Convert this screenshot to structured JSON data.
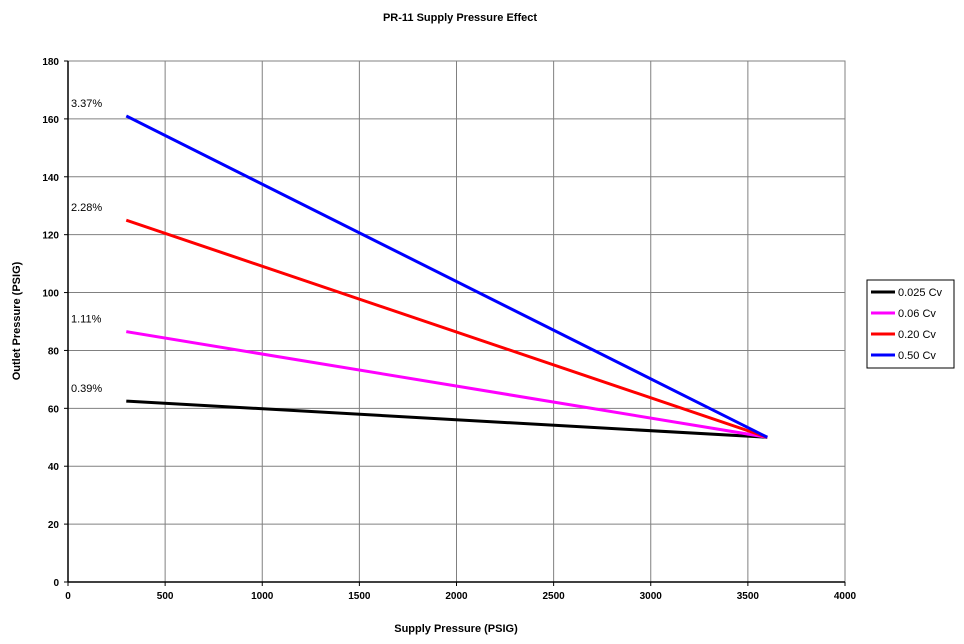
{
  "chart_data": {
    "type": "line",
    "title": "PR-11 Supply Pressure Effect",
    "xlabel": "Supply Pressure (PSIG)",
    "ylabel": "Outlet Pressure (PSIG)",
    "xlim": [
      0,
      4000
    ],
    "ylim": [
      0,
      180
    ],
    "xticks": [
      0,
      500,
      1000,
      1500,
      2000,
      2500,
      3000,
      3500,
      4000
    ],
    "yticks": [
      0,
      20,
      40,
      60,
      80,
      100,
      120,
      140,
      160,
      180
    ],
    "grid": true,
    "legend_position": "right",
    "series": [
      {
        "name": "0.025 Cv",
        "color": "#000000",
        "x": [
          300,
          3600
        ],
        "y": [
          62.5,
          50
        ],
        "annotation": "0.39%"
      },
      {
        "name": "0.06 Cv",
        "color": "#ff00ff",
        "x": [
          300,
          3600
        ],
        "y": [
          86.5,
          50
        ],
        "annotation": "1.11%"
      },
      {
        "name": "0.20 Cv",
        "color": "#ff0000",
        "x": [
          300,
          3600
        ],
        "y": [
          125,
          50
        ],
        "annotation": "2.28%"
      },
      {
        "name": "0.50 Cv",
        "color": "#0000ff",
        "x": [
          300,
          3600
        ],
        "y": [
          161,
          50
        ],
        "annotation": "3.37%"
      }
    ]
  }
}
